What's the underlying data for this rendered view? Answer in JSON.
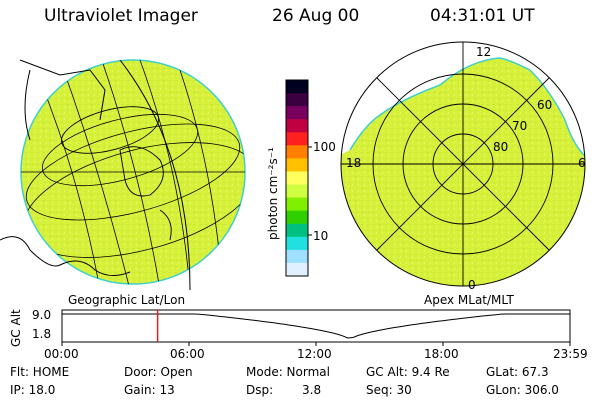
{
  "header": {
    "title": "Ultraviolet Imager",
    "date": "26 Aug 00",
    "time": "04:31:01 UT"
  },
  "left_panel": {
    "caption": "Geographic Lat/Lon"
  },
  "right_panel": {
    "caption": "Apex MLat/MLT",
    "mlt_labels": {
      "top": "12",
      "left": "18",
      "right": "6",
      "bottom": "0"
    },
    "lat_labels": [
      "60",
      "70",
      "80"
    ]
  },
  "colorbar": {
    "unit_label": "photon cm⁻²s⁻¹",
    "ticks": [
      "100",
      "10"
    ],
    "scale": "log",
    "colors": [
      "#000020",
      "#3a0040",
      "#7a0060",
      "#c00040",
      "#ff2020",
      "#ff8000",
      "#ffc000",
      "#ffff60",
      "#d0ff40",
      "#80f000",
      "#30d000",
      "#00c080",
      "#20e0e0",
      "#a0e0ff",
      "#e0f0ff"
    ]
  },
  "altitude_track": {
    "ylabel": "GC Alt",
    "y_ticks": [
      "9.0",
      "1.8"
    ],
    "x_ticks": [
      "00:00",
      "06:00",
      "12:00",
      "18:00",
      "23:59"
    ],
    "current_time_hours": 4.517,
    "y_range": [
      1.8,
      9.0
    ],
    "profile_note": "high ~9.0 with perigee dip near 14:00"
  },
  "status": {
    "flt": "Flt: HOME",
    "ip": "IP: 18.0",
    "door": "Door: Open",
    "gain": "Gain: 13",
    "mode": "Mode: Normal",
    "dsp_label": "Dsp:",
    "dsp_value": "3.8",
    "gc_alt": "GC Alt: 9.4 Re",
    "seq": "Seq: 30",
    "glat": "GLat:  67.3",
    "glon": "GLon: 306.0"
  },
  "colors": {
    "aurora_fill": "#d6f03c",
    "aurora_fill_alt": "#c8ec30",
    "edge": "#40d0c8",
    "time_marker": "#e02020"
  }
}
